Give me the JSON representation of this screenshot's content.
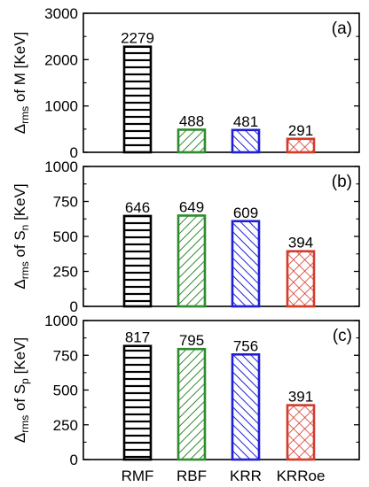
{
  "chart_data": [
    {
      "type": "bar",
      "panel_label": "(a)",
      "ylabel_main": "Δ",
      "ylabel_sub": "rms",
      "ylabel_rest": " of M [KeV]",
      "ylim": [
        0,
        3000
      ],
      "yticks": [
        "0",
        "1000",
        "2000",
        "3000"
      ],
      "categories": [
        "RMF",
        "RBF",
        "KRR",
        "KRRoe"
      ],
      "values": [
        2279,
        488,
        481,
        291
      ],
      "value_labels": [
        "2279",
        "488",
        "481",
        "291"
      ]
    },
    {
      "type": "bar",
      "panel_label": "(b)",
      "ylabel_main": "Δ",
      "ylabel_sub": "rms",
      "ylabel_rest": " of S",
      "ylabel_sub2": "n",
      "ylabel_tail": " [KeV]",
      "ylim": [
        0,
        1000
      ],
      "yticks": [
        "0",
        "250",
        "500",
        "750",
        "1000"
      ],
      "categories": [
        "RMF",
        "RBF",
        "KRR",
        "KRRoe"
      ],
      "values": [
        646,
        649,
        609,
        394
      ],
      "value_labels": [
        "646",
        "649",
        "609",
        "394"
      ]
    },
    {
      "type": "bar",
      "panel_label": "(c)",
      "ylabel_main": "Δ",
      "ylabel_sub": "rms",
      "ylabel_rest": " of S",
      "ylabel_sub2": "p",
      "ylabel_tail": " [KeV]",
      "ylim": [
        0,
        1000
      ],
      "yticks": [
        "0",
        "250",
        "500",
        "750",
        "1000"
      ],
      "categories": [
        "RMF",
        "RBF",
        "KRR",
        "KRRoe"
      ],
      "values": [
        817,
        795,
        756,
        391
      ],
      "value_labels": [
        "817",
        "795",
        "756",
        "391"
      ]
    }
  ],
  "x_categories": [
    "RMF",
    "RBF",
    "KRR",
    "KRRoe"
  ],
  "colors": {
    "RMF": "#000000",
    "RBF": "#2e8b2e",
    "KRR": "#1f1fd6",
    "KRRoe": "#d43a2a"
  },
  "patterns": {
    "RMF": "horizontal-lines",
    "RBF": "diagonal-lines-up",
    "KRR": "diagonal-lines-down",
    "KRRoe": "crosshatch"
  }
}
